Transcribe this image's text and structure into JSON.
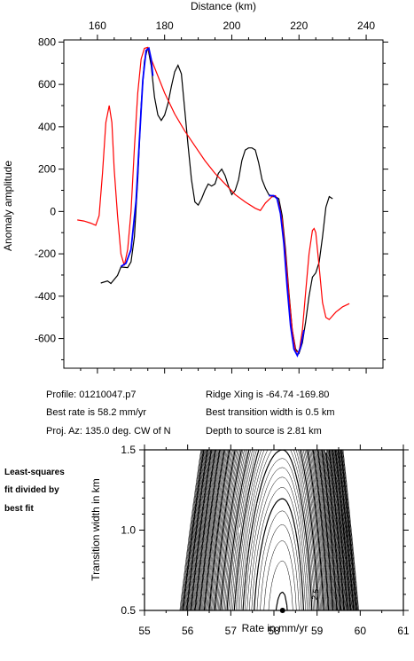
{
  "chart_data": [
    {
      "type": "line",
      "title": "",
      "xlabel": "Distance (km)",
      "ylabel": "Anomaly amplitude",
      "xlim": [
        150,
        245
      ],
      "ylim": [
        -740,
        810
      ],
      "x_ticks": [
        160,
        180,
        200,
        220,
        240
      ],
      "y_ticks": [
        800,
        600,
        400,
        200,
        0,
        -200,
        -400,
        -600
      ],
      "grid": false,
      "series": [
        {
          "color": "#000000",
          "points": [
            [
              161,
              -338
            ],
            [
              163,
              -328
            ],
            [
              164,
              -340
            ],
            [
              166,
              -302
            ],
            [
              167,
              -262
            ],
            [
              169,
              -265
            ],
            [
              170,
              -238
            ],
            [
              171,
              -120
            ],
            [
              172,
              150
            ],
            [
              173,
              500
            ],
            [
              174,
              710
            ],
            [
              175,
              775
            ],
            [
              176,
              690
            ],
            [
              177,
              540
            ],
            [
              178,
              455
            ],
            [
              179,
              430
            ],
            [
              180,
              455
            ],
            [
              181,
              510
            ],
            [
              182,
              590
            ],
            [
              183,
              660
            ],
            [
              184,
              690
            ],
            [
              185,
              650
            ],
            [
              186,
              480
            ],
            [
              187,
              310
            ],
            [
              188,
              150
            ],
            [
              189,
              45
            ],
            [
              190,
              30
            ],
            [
              191,
              60
            ],
            [
              192,
              100
            ],
            [
              193,
              130
            ],
            [
              194,
              120
            ],
            [
              195,
              130
            ],
            [
              196,
              180
            ],
            [
              197,
              200
            ],
            [
              198,
              170
            ],
            [
              199,
              120
            ],
            [
              200,
              80
            ],
            [
              201,
              100
            ],
            [
              202,
              150
            ],
            [
              203,
              240
            ],
            [
              204,
              290
            ],
            [
              205,
              300
            ],
            [
              206,
              300
            ],
            [
              207,
              290
            ],
            [
              208,
              230
            ],
            [
              209,
              150
            ],
            [
              210,
              110
            ],
            [
              211,
              80
            ],
            [
              212,
              70
            ],
            [
              213,
              70
            ],
            [
              214,
              60
            ],
            [
              215,
              -20
            ],
            [
              216,
              -180
            ],
            [
              217,
              -380
            ],
            [
              218,
              -560
            ],
            [
              219,
              -650
            ],
            [
              220,
              -670
            ],
            [
              221,
              -620
            ],
            [
              222,
              -520
            ],
            [
              223,
              -400
            ],
            [
              224,
              -310
            ],
            [
              225,
              -290
            ],
            [
              226,
              -240
            ],
            [
              227,
              -120
            ],
            [
              228,
              20
            ],
            [
              229,
              70
            ],
            [
              230,
              60
            ]
          ]
        },
        {
          "color": "#ff0000",
          "points": [
            [
              154,
              -40
            ],
            [
              156,
              -45
            ],
            [
              158,
              -55
            ],
            [
              159.5,
              -65
            ],
            [
              160.5,
              -20
            ],
            [
              161.5,
              180
            ],
            [
              162.5,
              420
            ],
            [
              163.5,
              500
            ],
            [
              164.3,
              420
            ],
            [
              165,
              200
            ],
            [
              166,
              -20
            ],
            [
              167,
              -200
            ],
            [
              168,
              -255
            ],
            [
              169,
              -180
            ],
            [
              170,
              0
            ],
            [
              171,
              300
            ],
            [
              172,
              560
            ],
            [
              173,
              720
            ],
            [
              174,
              770
            ],
            [
              175,
              775
            ],
            [
              176,
              720
            ],
            [
              178,
              640
            ],
            [
              180,
              560
            ],
            [
              183,
              460
            ],
            [
              186,
              380
            ],
            [
              189,
              310
            ],
            [
              192,
              240
            ],
            [
              195,
              180
            ],
            [
              198,
              130
            ],
            [
              201,
              80
            ],
            [
              204,
              45
            ],
            [
              207,
              15
            ],
            [
              208.5,
              5
            ],
            [
              210,
              40
            ],
            [
              212,
              70
            ],
            [
              213,
              75
            ],
            [
              214,
              40
            ],
            [
              215,
              -40
            ],
            [
              216,
              -200
            ],
            [
              217,
              -390
            ],
            [
              218,
              -560
            ],
            [
              219,
              -660
            ],
            [
              220,
              -665
            ],
            [
              221,
              -560
            ],
            [
              222,
              -380
            ],
            [
              223,
              -200
            ],
            [
              224,
              -90
            ],
            [
              224.5,
              -80
            ],
            [
              225,
              -100
            ],
            [
              226,
              -260
            ],
            [
              227,
              -430
            ],
            [
              228,
              -500
            ],
            [
              229,
              -510
            ],
            [
              231,
              -475
            ],
            [
              233,
              -450
            ],
            [
              235,
              -435
            ]
          ]
        },
        {
          "color": "#0000ff",
          "points": [
            [
              167,
              -260
            ],
            [
              168.5,
              -245
            ],
            [
              170,
              -180
            ],
            [
              171.5,
              50
            ],
            [
              172.5,
              340
            ],
            [
              173.5,
              620
            ],
            [
              174.5,
              760
            ],
            [
              175.3,
              770
            ],
            [
              176,
              720
            ],
            [
              176.5,
              640
            ],
            [
              211,
              75
            ],
            [
              212.5,
              75
            ],
            [
              213.5,
              60
            ],
            [
              214.5,
              -10
            ],
            [
              215.5,
              -150
            ],
            [
              216.5,
              -360
            ],
            [
              217.5,
              -540
            ],
            [
              218.5,
              -650
            ],
            [
              219.5,
              -680
            ],
            [
              220.5,
              -640
            ],
            [
              221.5,
              -560
            ]
          ]
        }
      ]
    },
    {
      "type": "contour",
      "title": "",
      "xlabel": "Rate in mm/yr",
      "ylabel": "Transition width in km",
      "xlim": [
        55,
        61
      ],
      "ylim": [
        0.5,
        1.5
      ],
      "x_ticks": [
        55,
        56,
        57,
        58,
        59,
        60,
        61
      ],
      "y_ticks": [
        0.5,
        1.0,
        1.5
      ],
      "grid": false,
      "best_fit": {
        "rate": 58.2,
        "width": 0.5
      },
      "contour_label": "2.5"
    }
  ],
  "info": {
    "profile": "Profile: 01210047.p7",
    "best_rate": "Best rate is 58.2 mm/yr",
    "proj_az": "Proj. Az: 135.0 deg. CW of N",
    "ridge_xing": "Ridge Xing is -64.74 -169.80",
    "best_width": "Best transition width is 0.5 km",
    "depth": "Depth to source is   2.81 km"
  },
  "side_note": [
    "Least-squares",
    "fit divided by",
    "best fit"
  ]
}
